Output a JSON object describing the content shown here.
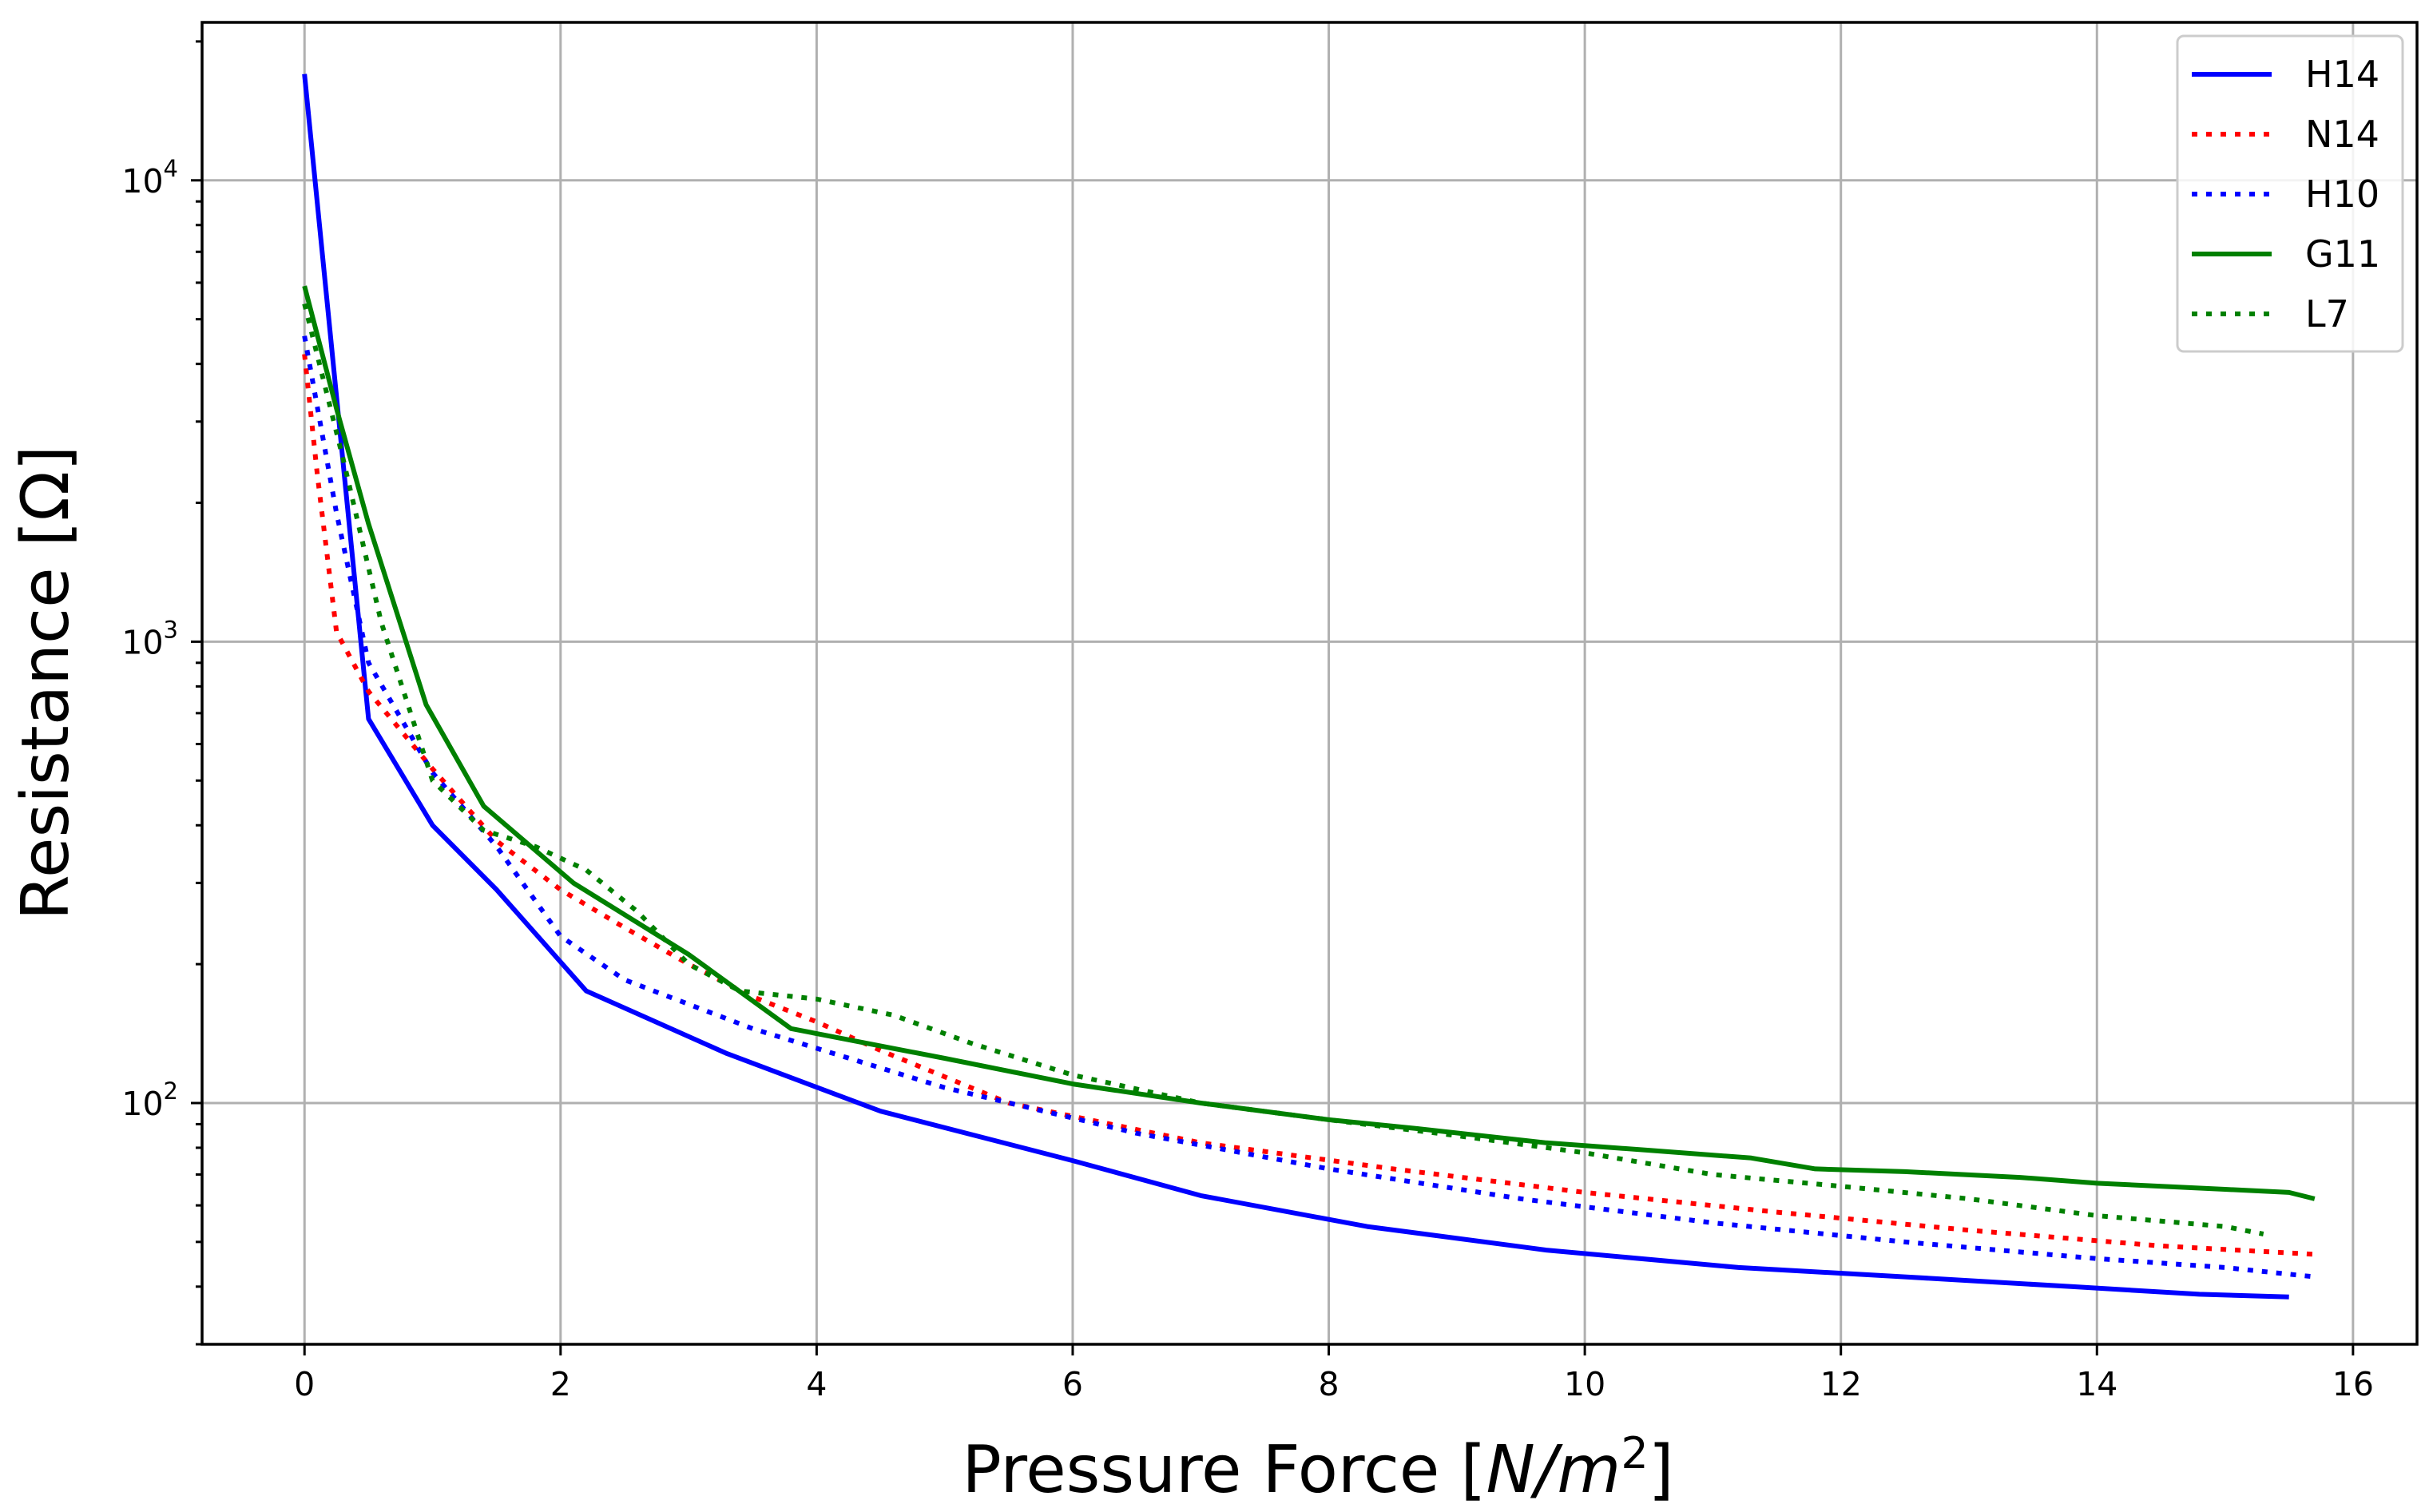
{
  "chart_data": {
    "type": "line",
    "xlabel": "Pressure Force [N/m²]",
    "xlabel_parts": {
      "main": "Pressure Force [",
      "var_n": "N",
      "slash": "/",
      "var_m": "m",
      "sup": "2",
      "close": "]"
    },
    "ylabel": "Resistance [Ω]",
    "xlim": [
      -0.8,
      16.5
    ],
    "ylim": [
      30,
      22000
    ],
    "yscale": "log",
    "grid": true,
    "legend_position": "top-right",
    "x_ticks": [
      0,
      2,
      4,
      6,
      8,
      10,
      12,
      14,
      16
    ],
    "x_tick_labels": [
      "0",
      "2",
      "4",
      "6",
      "8",
      "10",
      "12",
      "14",
      "16"
    ],
    "y_ticks": [
      100,
      1000,
      10000
    ],
    "y_tick_labels": [
      {
        "base": "10",
        "exp": "2"
      },
      {
        "base": "10",
        "exp": "3"
      },
      {
        "base": "10",
        "exp": "4"
      }
    ],
    "series": [
      {
        "name": "H14",
        "color": "#0000ff",
        "style": "solid",
        "x": [
          0,
          0.5,
          1.0,
          1.5,
          2.2,
          3.3,
          4.5,
          6.0,
          7.0,
          8.3,
          9.7,
          11.2,
          12.5,
          13.8,
          14.8,
          15.5
        ],
        "y": [
          17000,
          680,
          400,
          290,
          175,
          128,
          96,
          75,
          63,
          54,
          48,
          44,
          42,
          40,
          38.5,
          38
        ]
      },
      {
        "name": "N14",
        "color": "#ff0000",
        "style": "dotted",
        "x": [
          0,
          0.1,
          0.25,
          0.5,
          1.0,
          1.5,
          2.0,
          2.5,
          3.0,
          3.5,
          4.0,
          4.5,
          5.5,
          7.0,
          8.5,
          10.0,
          11.5,
          13.0,
          14.5,
          15.7
        ],
        "y": [
          4200,
          2300,
          1050,
          780,
          530,
          370,
          290,
          240,
          200,
          170,
          150,
          130,
          100,
          82,
          72,
          64,
          58,
          53,
          49,
          47
        ]
      },
      {
        "name": "H10",
        "color": "#0000ff",
        "style": "dotted",
        "x": [
          0,
          0.25,
          0.5,
          1.0,
          1.5,
          2.0,
          2.5,
          3.5,
          5.0,
          6.5,
          8.0,
          9.5,
          11.0,
          12.5,
          14.0,
          15.0,
          15.7
        ],
        "y": [
          4600,
          1900,
          900,
          520,
          360,
          230,
          185,
          145,
          108,
          86,
          72,
          62,
          55,
          50,
          46,
          44,
          42
        ]
      },
      {
        "name": "G11",
        "color": "#008000",
        "style": "solid",
        "x": [
          0,
          0.25,
          0.5,
          0.95,
          1.4,
          2.1,
          3.0,
          3.8,
          5.0,
          6.0,
          7.0,
          8.0,
          8.7,
          9.7,
          10.5,
          11.3,
          11.8,
          12.5,
          13.4,
          14.0,
          15.0,
          15.5,
          15.7
        ],
        "y": [
          5900,
          3200,
          1800,
          730,
          440,
          300,
          210,
          145,
          125,
          110,
          100,
          92,
          88,
          82,
          79,
          76,
          72,
          71,
          69,
          67,
          65,
          64,
          62
        ]
      },
      {
        "name": "L7",
        "color": "#008000",
        "style": "dotted",
        "x": [
          0,
          0.3,
          0.6,
          1.0,
          1.4,
          1.8,
          2.2,
          2.6,
          3.0,
          3.4,
          4.0,
          4.6,
          5.2,
          6.0,
          7.0,
          8.0,
          9.0,
          10.0,
          11.0,
          12.0,
          13.0,
          14.0,
          15.0,
          15.3
        ],
        "y": [
          5400,
          2500,
          1100,
          500,
          390,
          360,
          320,
          260,
          200,
          175,
          168,
          155,
          135,
          115,
          100,
          92,
          85,
          78,
          70,
          66,
          62,
          57,
          54,
          52
        ]
      }
    ]
  }
}
